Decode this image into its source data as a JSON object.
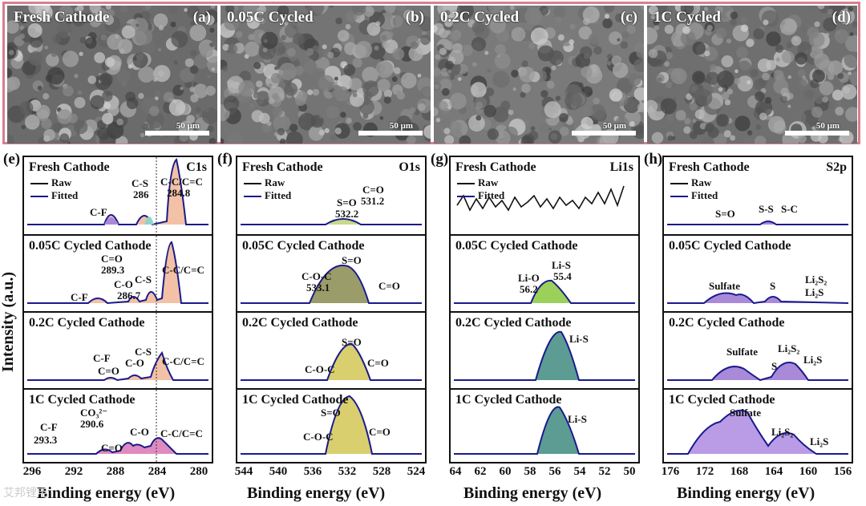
{
  "sem": [
    {
      "label": "Fresh Cathode",
      "tag": "(a)",
      "scale": "50 μm"
    },
    {
      "label": "0.05C Cycled",
      "tag": "(b)",
      "scale": "50 μm"
    },
    {
      "label": "0.2C Cycled",
      "tag": "(c)",
      "scale": "50 μm"
    },
    {
      "label": "1C Cycled",
      "tag": "(d)",
      "scale": "50 μm"
    }
  ],
  "ylabel": "Intensity (a.u.)",
  "xlabel": "Binding energy (eV)",
  "legend": {
    "raw": "Raw",
    "fitted": "Fitted"
  },
  "colors": {
    "frame": "#d77f8f",
    "fitted": "#1a1a8c",
    "raw": "#111111"
  },
  "panels": [
    {
      "tag": "(e)",
      "element": "C1s",
      "ticks": [
        "296",
        "292",
        "288",
        "284",
        "280"
      ],
      "rows": [
        {
          "title": "Fresh Cathode",
          "ann": [
            "C-F",
            "C-S",
            "286",
            "C-C/C=C",
            "284.8"
          ]
        },
        {
          "title": "0.05C Cycled Cathode",
          "ann": [
            "C=O",
            "289.3",
            "C-O",
            "286.7",
            "C-S",
            "C-F",
            "C-C/C=C"
          ]
        },
        {
          "title": "0.2C Cycled Cathode",
          "ann": [
            "C-F",
            "C=O",
            "C-O",
            "C-S",
            "C-C/C=C"
          ]
        },
        {
          "title": "1C Cycled Cathode",
          "ann": [
            "CO₃²⁻",
            "290.6",
            "C-F",
            "293.3",
            "C-O",
            "C=O",
            "C-C/C=C"
          ]
        }
      ]
    },
    {
      "tag": "(f)",
      "element": "O1s",
      "ticks": [
        "544",
        "540",
        "536",
        "532",
        "528",
        "524"
      ],
      "rows": [
        {
          "title": "Fresh Cathode",
          "ann": [
            "S=O",
            "532.2",
            "C=O",
            "531.2"
          ]
        },
        {
          "title": "0.05C Cycled Cathode",
          "ann": [
            "S=O",
            "C-O-C",
            "533.1",
            "C=O"
          ]
        },
        {
          "title": "0.2C Cycled Cathode",
          "ann": [
            "S=O",
            "C-O-C",
            "C=O"
          ]
        },
        {
          "title": "1C Cycled Cathode",
          "ann": [
            "S=O",
            "C-O-C",
            "C=O"
          ]
        }
      ]
    },
    {
      "tag": "(g)",
      "element": "Li1s",
      "ticks": [
        "64",
        "62",
        "60",
        "58",
        "56",
        "54",
        "52",
        "50"
      ],
      "rows": [
        {
          "title": "Fresh Cathode",
          "ann": []
        },
        {
          "title": "0.05C Cycled Cathode",
          "ann": [
            "Li-O",
            "56.2",
            "Li-S",
            "55.4"
          ]
        },
        {
          "title": "0.2C Cycled Cathode",
          "ann": [
            "Li-S"
          ]
        },
        {
          "title": "1C Cycled Cathode",
          "ann": [
            "Li-S"
          ]
        }
      ]
    },
    {
      "tag": "(h)",
      "element": "S2p",
      "ticks": [
        "176",
        "172",
        "168",
        "164",
        "160",
        "156"
      ],
      "rows": [
        {
          "title": "Fresh Cathode",
          "ann": [
            "S=O",
            "S-S",
            "S-C"
          ]
        },
        {
          "title": "0.05C Cycled Cathode",
          "ann": [
            "Sulfate",
            "S",
            "Li₂S₂",
            "Li₂S"
          ]
        },
        {
          "title": "0.2C Cycled Cathode",
          "ann": [
            "Sulfate",
            "S",
            "Li₂S₂",
            "Li₂S"
          ]
        },
        {
          "title": "1C Cycled Cathode",
          "ann": [
            "Sulfate",
            "Li₂S₂",
            "Li₂S"
          ]
        }
      ]
    }
  ],
  "watermark": "艾邦锂电"
}
